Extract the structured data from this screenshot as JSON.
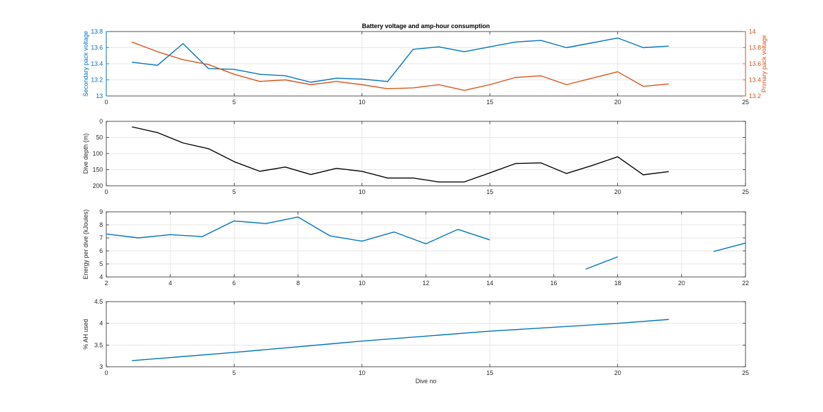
{
  "figure": {
    "title": "Battery voltage and amp-hour consumption"
  },
  "colors": {
    "blue": "#0072bd",
    "orange": "#d95319",
    "black": "#000000",
    "grid": "#e6e6e6",
    "axis": "#262626"
  },
  "chart_data": [
    {
      "type": "line",
      "name": "voltage",
      "title": "Battery voltage and amp-hour consumption",
      "xlim": [
        0,
        25
      ],
      "xticks": [
        0,
        5,
        10,
        15,
        20,
        25
      ],
      "grid": true,
      "left_axis": {
        "label": "Secondary pack voltage",
        "ylim": [
          13,
          13.8
        ],
        "ticks": [
          "13",
          "13.2",
          "13.4",
          "13.6",
          "13.8"
        ]
      },
      "right_axis": {
        "label": "Primary pack voltage",
        "ylim": [
          13.2,
          14
        ],
        "ticks": [
          "13.2",
          "13.4",
          "13.6",
          "13.8",
          "14"
        ]
      },
      "series": [
        {
          "axis": "left",
          "color": "blue",
          "x": [
            1,
            2,
            3,
            4,
            5,
            6,
            7,
            8,
            9,
            10,
            11,
            12,
            13,
            14,
            15,
            16,
            17,
            18,
            19,
            20,
            21,
            22
          ],
          "y": [
            13.42,
            13.38,
            13.65,
            13.34,
            13.33,
            13.27,
            13.25,
            13.17,
            13.22,
            13.21,
            13.18,
            13.58,
            13.61,
            13.55,
            13.61,
            13.67,
            13.69,
            13.6,
            13.66,
            13.72,
            13.6,
            13.62
          ]
        },
        {
          "axis": "right",
          "color": "orange",
          "x": [
            1,
            2,
            3,
            4,
            5,
            6,
            7,
            8,
            9,
            10,
            11,
            12,
            13,
            14,
            15,
            16,
            17,
            18,
            19,
            20,
            21,
            22
          ],
          "y": [
            13.87,
            13.75,
            13.65,
            13.59,
            13.47,
            13.38,
            13.4,
            13.34,
            13.38,
            13.34,
            13.29,
            13.3,
            13.34,
            13.27,
            13.34,
            13.43,
            13.45,
            13.34,
            13.42,
            13.5,
            13.32,
            13.35
          ]
        }
      ]
    },
    {
      "type": "line",
      "name": "depth",
      "xlim": [
        0,
        25
      ],
      "xticks": [
        0,
        5,
        10,
        15,
        20,
        25
      ],
      "ylim": [
        0,
        200
      ],
      "yreverse": true,
      "yticks": [
        "0",
        "50",
        "100",
        "150",
        "200"
      ],
      "ylabel": "Dive depth (m)",
      "grid": true,
      "series": [
        {
          "color": "black",
          "x": [
            1,
            2,
            3,
            4,
            5,
            6,
            7,
            8,
            9,
            10,
            11,
            12,
            13,
            14,
            15,
            16,
            17,
            18,
            19,
            20,
            21,
            22
          ],
          "y": [
            17,
            35,
            67,
            85,
            125,
            155,
            142,
            165,
            146,
            155,
            176,
            176,
            188,
            188,
            160,
            131,
            129,
            162,
            137,
            110,
            166,
            156
          ]
        }
      ]
    },
    {
      "type": "line",
      "name": "energy",
      "xlim": [
        2,
        22
      ],
      "xticks": [
        2,
        4,
        6,
        8,
        10,
        12,
        14,
        16,
        18,
        20,
        22
      ],
      "ylim": [
        4,
        9
      ],
      "yticks": [
        "4",
        "5",
        "6",
        "7",
        "8",
        "9"
      ],
      "ylabel": "Energy per dive (kJoules)",
      "grid": true,
      "series": [
        {
          "color": "blue",
          "x": [
            2,
            3,
            4,
            5,
            6,
            7,
            8,
            9,
            10,
            11,
            12,
            13,
            14
          ],
          "y": [
            7.3,
            7.0,
            7.25,
            7.1,
            8.3,
            8.1,
            8.6,
            7.15,
            6.75,
            7.45,
            6.55,
            7.65,
            6.85
          ]
        },
        {
          "color": "blue",
          "x": [
            17,
            18
          ],
          "y": [
            4.6,
            5.55
          ]
        },
        {
          "color": "blue",
          "x": [
            21,
            22
          ],
          "y": [
            5.95,
            6.6
          ]
        }
      ]
    },
    {
      "type": "line",
      "name": "ah",
      "xlim": [
        0,
        25
      ],
      "xticks": [
        0,
        5,
        10,
        15,
        20,
        25
      ],
      "ylim": [
        3,
        4.5
      ],
      "yticks": [
        "3",
        "3.5",
        "4",
        "4.5"
      ],
      "ylabel": "% AH used",
      "xlabel": "Dive no",
      "grid": true,
      "series": [
        {
          "color": "blue",
          "x": [
            1,
            5,
            10,
            15,
            20,
            22
          ],
          "y": [
            3.14,
            3.33,
            3.59,
            3.82,
            4.0,
            4.09
          ]
        }
      ]
    }
  ]
}
